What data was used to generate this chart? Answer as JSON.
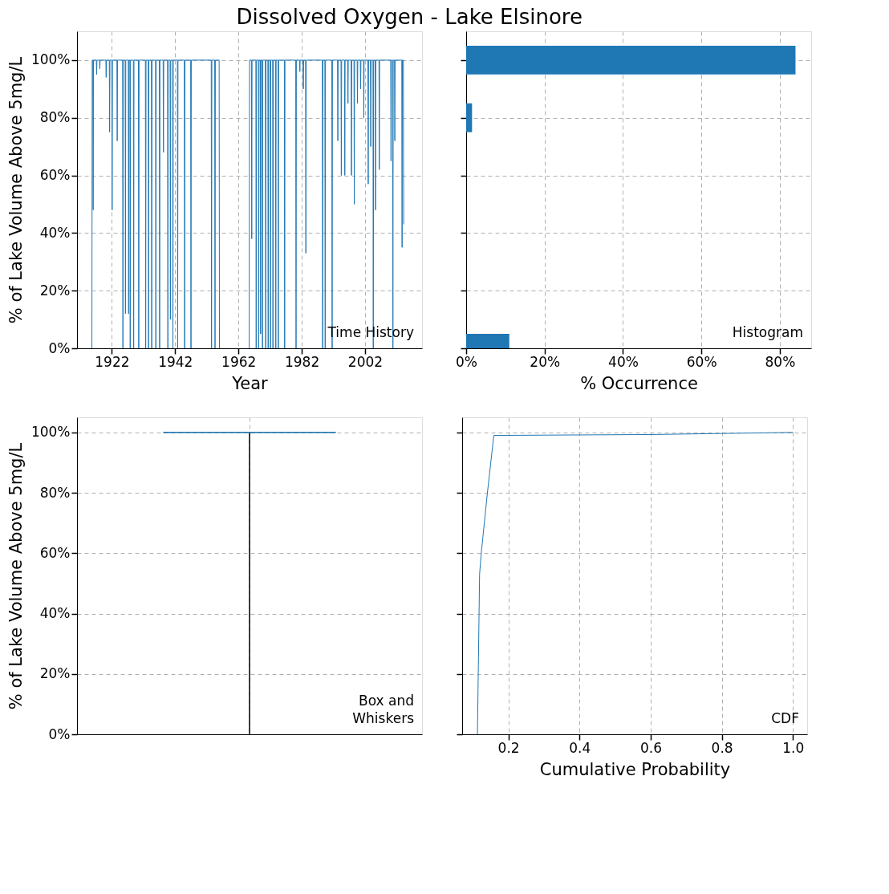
{
  "chart_data": [
    {
      "type": "line",
      "title": "Dissolved Oxygen - Lake Elsinore",
      "xlabel": "Year",
      "ylabel": "% of Lake Volume Above 5mg/L",
      "annotations": [
        "Time History"
      ],
      "grid": true,
      "marker": "none",
      "xlim": [
        1911,
        2020
      ],
      "xticks": [
        1922,
        1942,
        1962,
        1982,
        2002
      ],
      "ylim": [
        0,
        110
      ],
      "yticks": [
        {
          "value": 0,
          "label": "0%"
        },
        {
          "value": 20,
          "label": "20%"
        },
        {
          "value": 40,
          "label": "40%"
        },
        {
          "value": 60,
          "label": "60%"
        },
        {
          "value": 80,
          "label": "80%"
        },
        {
          "value": 100,
          "label": "100%"
        }
      ],
      "series": [
        {
          "color": "#1f77b4",
          "x": [
            1915.7,
            1915.8,
            1916.0,
            1916.1,
            1916.2,
            1917.1,
            1917.2,
            1917.3,
            1918.1,
            1918.2,
            1918.3,
            1920.1,
            1920.2,
            1920.3,
            1921.2,
            1921.3,
            1921.4,
            1922.0,
            1922.1,
            1922.2,
            1923.6,
            1923.7,
            1923.8,
            1925.4,
            1925.5,
            1925.6,
            1926.2,
            1926.3,
            1926.4,
            1927.2,
            1927.3,
            1927.4,
            1927.7,
            1927.8,
            1927.9,
            1928.8,
            1928.9,
            1929.0,
            1930.4,
            1930.5,
            1930.6,
            1932.6,
            1932.7,
            1932.8,
            1933.5,
            1933.6,
            1933.7,
            1934.5,
            1934.6,
            1934.7,
            1935.8,
            1935.9,
            1936.0,
            1937.0,
            1937.1,
            1937.2,
            1938.2,
            1938.3,
            1938.4,
            1939.6,
            1939.7,
            1939.8,
            1940.4,
            1940.5,
            1940.6,
            1941.2,
            1941.3,
            1941.4,
            1942.7,
            1942.8,
            1942.9,
            1944.9,
            1945.0,
            1945.1,
            1946.9,
            1947.0,
            1947.1,
            1953.4,
            1953.5,
            1953.6,
            1954.5,
            1954.6,
            1954.7,
            1955.9,
            1956.0,
            1960.0,
            1965.4,
            1965.5,
            1966.1,
            1966.2,
            1966.3,
            1967.5,
            1967.6,
            1967.7,
            1968.3,
            1968.4,
            1968.5,
            1968.9,
            1969.0,
            1969.1,
            1969.5,
            1969.6,
            1969.7,
            1970.5,
            1970.6,
            1970.7,
            1971.3,
            1971.4,
            1971.5,
            1972.0,
            1972.1,
            1972.2,
            1972.8,
            1972.9,
            1973.0,
            1973.7,
            1973.8,
            1973.9,
            1974.5,
            1974.6,
            1974.7,
            1976.5,
            1976.6,
            1976.7,
            1980.1,
            1980.2,
            1980.3,
            1981.3,
            1981.4,
            1981.5,
            1982.4,
            1982.5,
            1982.6,
            1983.2,
            1983.3,
            1983.4,
            1988.5,
            1988.6,
            1988.7,
            1989.3,
            1989.4,
            1989.5,
            1991.5,
            1991.6,
            1991.7,
            1993.3,
            1993.4,
            1993.5,
            1994.4,
            1994.5,
            1994.6,
            1995.5,
            1995.6,
            1995.7,
            1996.5,
            1996.6,
            1996.7,
            1997.6,
            1997.7,
            1997.8,
            1998.5,
            1998.6,
            1998.7,
            1999.5,
            1999.6,
            1999.7,
            2000.5,
            2000.6,
            2000.7,
            2001.5,
            2001.6,
            2001.7,
            2002.9,
            2003.0,
            2003.1,
            2003.7,
            2003.8,
            2003.9,
            2004.5,
            2004.6,
            2004.7,
            2005.2,
            2005.3,
            2005.4,
            2006.4,
            2006.5,
            2006.6,
            2010.1,
            2010.2,
            2010.3,
            2010.7,
            2010.8,
            2010.9,
            2011.3,
            2011.4,
            2011.5,
            2013.6,
            2013.7,
            2013.8,
            2014.1,
            2014.2
          ],
          "values": [
            0,
            100,
            100,
            48,
            100,
            100,
            95,
            100,
            100,
            97,
            100,
            100,
            94,
            100,
            100,
            75,
            100,
            100,
            48,
            100,
            100,
            72,
            100,
            100,
            0,
            100,
            100,
            12,
            100,
            100,
            12,
            100,
            100,
            0,
            100,
            100,
            0,
            100,
            100,
            0,
            100,
            100,
            0,
            100,
            100,
            0,
            100,
            100,
            0,
            100,
            100,
            0,
            100,
            100,
            0,
            100,
            100,
            68,
            100,
            100,
            0,
            100,
            100,
            10,
            100,
            100,
            0,
            100,
            100,
            0,
            100,
            100,
            0,
            100,
            100,
            0,
            100,
            100,
            0,
            100,
            100,
            0,
            100,
            100,
            0,
            null,
            0,
            100,
            100,
            38,
            100,
            100,
            0,
            100,
            100,
            0,
            100,
            100,
            5,
            100,
            100,
            0,
            100,
            100,
            0,
            100,
            100,
            0,
            100,
            100,
            0,
            100,
            100,
            0,
            100,
            100,
            0,
            100,
            100,
            0,
            100,
            100,
            0,
            100,
            100,
            0,
            100,
            100,
            96,
            100,
            100,
            90,
            100,
            100,
            33,
            100,
            100,
            0,
            100,
            100,
            0,
            100,
            100,
            0,
            100,
            100,
            72,
            100,
            100,
            60,
            100,
            100,
            60,
            100,
            100,
            85,
            100,
            100,
            60,
            100,
            100,
            50,
            100,
            100,
            85,
            100,
            100,
            90,
            100,
            100,
            80,
            100,
            100,
            57,
            100,
            100,
            70,
            100,
            100,
            0,
            100,
            100,
            48,
            100,
            100,
            62,
            100,
            100,
            65,
            100,
            100,
            0,
            100,
            100,
            72,
            100,
            100,
            35,
            100,
            100,
            43
          ]
        }
      ]
    },
    {
      "type": "histogram",
      "orientation": "horizontal",
      "xlabel": "% Occurrence",
      "annotations": [
        "Histogram"
      ],
      "grid": true,
      "tick_labels": "x",
      "color": "#1f77b4",
      "bins": [
        0,
        5,
        75,
        85,
        95,
        105
      ],
      "values": [
        11,
        0,
        1.5,
        0,
        84
      ],
      "xlim": [
        0,
        88
      ],
      "xticks": [
        {
          "value": 0,
          "label": "0%"
        },
        {
          "value": 20,
          "label": "20%"
        },
        {
          "value": 40,
          "label": "40%"
        },
        {
          "value": 60,
          "label": "60%"
        },
        {
          "value": 80,
          "label": "80%"
        }
      ],
      "ylim": [
        0,
        110
      ],
      "yticks": [
        {
          "value": 0,
          "label": null
        },
        {
          "value": 20,
          "label": null
        },
        {
          "value": 40,
          "label": null
        },
        {
          "value": 60,
          "label": null
        },
        {
          "value": 80,
          "label": null
        },
        {
          "value": 100,
          "label": null
        }
      ]
    },
    {
      "type": "box",
      "ylabel": "% of Lake Volume Above 5mg/L",
      "annotations": [
        "Box and\nWhiskers"
      ],
      "grid": true,
      "tick_labels": "y",
      "color": "#1f77b4",
      "categories": [
        null
      ],
      "boxes": [
        {
          "low": 0,
          "q1": 100,
          "median": 100,
          "q3": 100,
          "high": 100
        }
      ],
      "ylim": [
        0,
        105
      ],
      "yticks": [
        {
          "value": 0,
          "label": "0%"
        },
        {
          "value": 20,
          "label": "20%"
        },
        {
          "value": 40,
          "label": "40%"
        },
        {
          "value": 60,
          "label": "60%"
        },
        {
          "value": 80,
          "label": "80%"
        },
        {
          "value": 100,
          "label": "100%"
        }
      ]
    },
    {
      "type": "line",
      "xlabel": "Cumulative Probability",
      "annotations": [
        "CDF"
      ],
      "grid": true,
      "tick_labels": "x",
      "marker": "none",
      "xlim": [
        0.07,
        1.04
      ],
      "xticks": [
        0.2,
        0.4,
        0.6,
        0.8,
        {
          "value": 1,
          "label": "1.0"
        }
      ],
      "ylim": [
        0,
        105
      ],
      "yticks": [
        {
          "value": 0,
          "label": null
        },
        {
          "value": 20,
          "label": null
        },
        {
          "value": 40,
          "label": null
        },
        {
          "value": 60,
          "label": null
        },
        {
          "value": 80,
          "label": null
        },
        {
          "value": 100,
          "label": null
        }
      ],
      "series": [
        {
          "color": "#1f77b4",
          "x": [
            0.113,
            0.119,
            0.123,
            0.128,
            0.141,
            0.159,
            0.604,
            1.0
          ],
          "values": [
            0,
            53,
            59,
            65,
            80,
            99,
            99.3,
            100
          ]
        }
      ]
    }
  ]
}
